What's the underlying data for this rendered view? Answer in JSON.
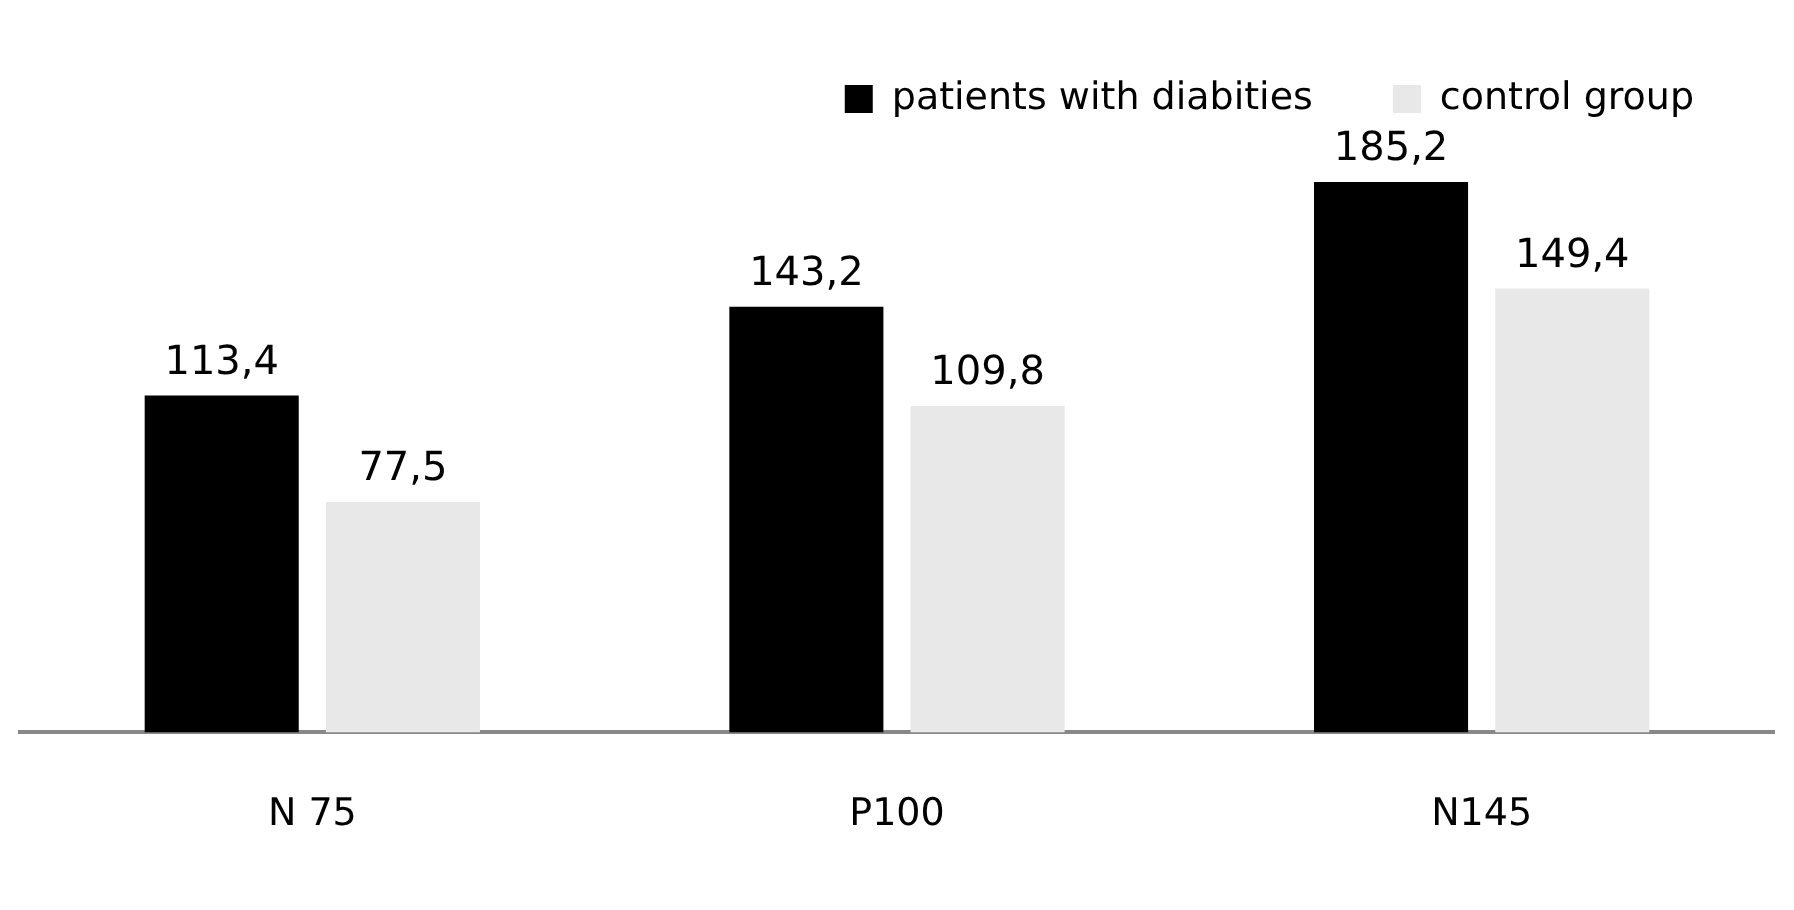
{
  "chart_data": {
    "type": "bar",
    "categories": [
      "N 75",
      "P100",
      "N145"
    ],
    "series": [
      {
        "name": "patients with diabities",
        "color": "#000000",
        "values": [
          113.4,
          143.2,
          185.2
        ],
        "value_labels": [
          "113,4",
          "143,2",
          "185,2"
        ]
      },
      {
        "name": "control group",
        "color": "#e8e8e8",
        "values": [
          77.5,
          109.8,
          149.4
        ],
        "value_labels": [
          "77,5",
          "109,8",
          "149,4"
        ]
      }
    ],
    "legend": "top right",
    "grid": false
  }
}
